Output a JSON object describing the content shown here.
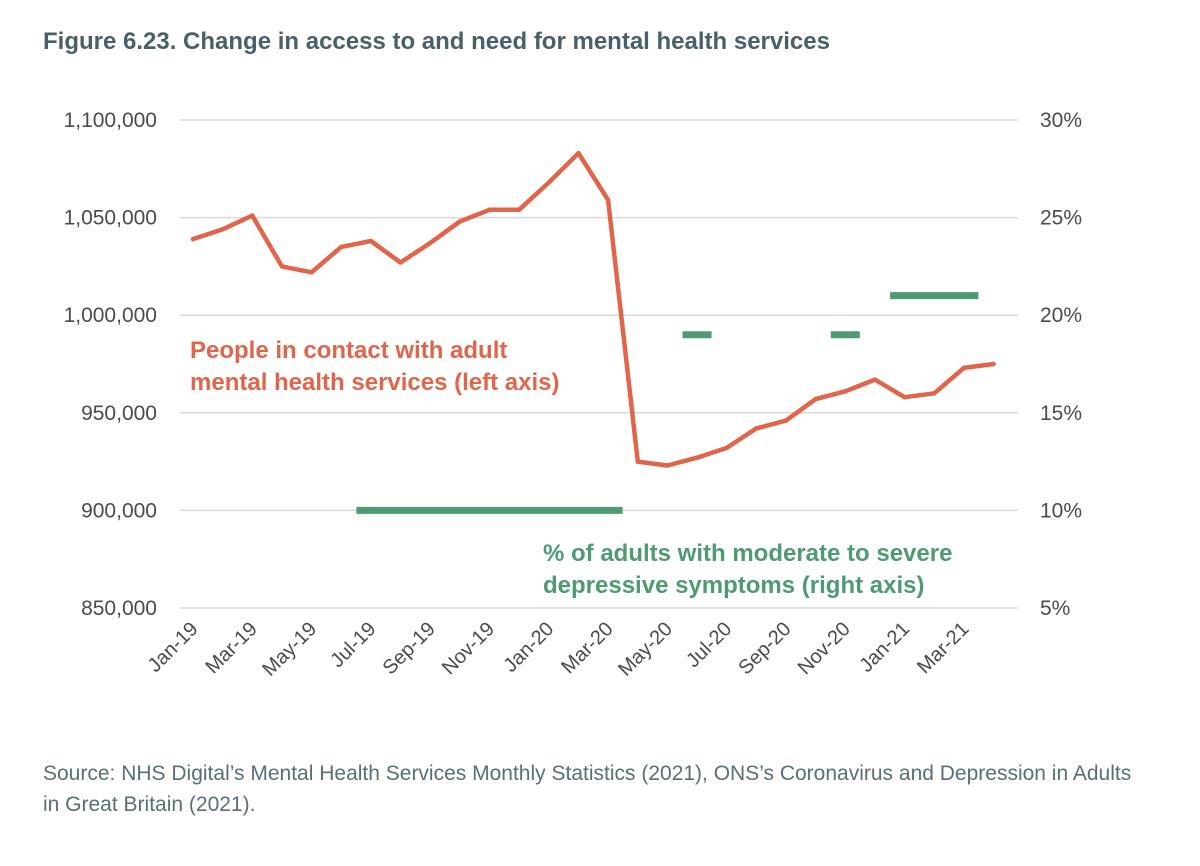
{
  "figure": {
    "title": "Figure 6.23. Change in access to and need for mental health services",
    "source": "Source: NHS Digital’s Mental Health Services Monthly Statistics (2021), ONS’s Coronavirus and Depression in Adults in Great Britain (2021)."
  },
  "colors": {
    "contacts": "#e0654a",
    "depression": "#4e9a73",
    "grid": "#d9d9d9",
    "title": "#4a6069",
    "text": "#4b4b4b"
  },
  "chart_data": {
    "type": "line",
    "title": "Figure 6.23. Change in access to and need for mental health services",
    "categories": [
      "Jan-19",
      "Feb-19",
      "Mar-19",
      "Apr-19",
      "May-19",
      "Jun-19",
      "Jul-19",
      "Aug-19",
      "Sep-19",
      "Oct-19",
      "Nov-19",
      "Dec-19",
      "Jan-20",
      "Feb-20",
      "Mar-20",
      "Apr-20",
      "May-20",
      "Jun-20",
      "Jul-20",
      "Aug-20",
      "Sep-20",
      "Oct-20",
      "Nov-20",
      "Dec-20",
      "Jan-21",
      "Feb-21",
      "Mar-21",
      "Apr-21"
    ],
    "x_tick_labels": [
      "Jan-19",
      "Mar-19",
      "May-19",
      "Jul-19",
      "Sep-19",
      "Nov-19",
      "Jan-20",
      "Mar-20",
      "May-20",
      "Jul-20",
      "Sep-20",
      "Nov-20",
      "Jan-21",
      "Mar-21"
    ],
    "grid": true,
    "left_axis": {
      "ylim": [
        850000,
        1100000
      ],
      "ticks": [
        850000,
        900000,
        950000,
        1000000,
        1050000,
        1100000
      ],
      "tick_labels": [
        "850,000",
        "900,000",
        "950,000",
        "1,000,000",
        "1,050,000",
        "1,100,000"
      ]
    },
    "right_axis": {
      "ylim": [
        5,
        30
      ],
      "ticks": [
        5,
        10,
        15,
        20,
        25,
        30
      ],
      "tick_labels": [
        "5%",
        "10%",
        "15%",
        "20%",
        "25%",
        "30%"
      ]
    },
    "series": [
      {
        "name": "People in contact with adult mental health services (left axis)",
        "axis": "left",
        "values": [
          1039000,
          1044000,
          1051000,
          1025000,
          1022000,
          1035000,
          1038000,
          1027000,
          1037000,
          1048000,
          1054000,
          1054000,
          1068000,
          1083000,
          1059000,
          925000,
          923000,
          927000,
          932000,
          942000,
          946000,
          957000,
          961000,
          967000,
          958000,
          960000,
          973000,
          975000
        ]
      },
      {
        "name": "% of adults with moderate to severe depressive symptoms (right axis)",
        "axis": "right",
        "type": "segments",
        "segments": [
          {
            "from": "Jul-19",
            "to": "Mar-20",
            "value": 10
          },
          {
            "from": "Jun-20",
            "to": "Jun-20",
            "value": 19
          },
          {
            "from": "Nov-20",
            "to": "Nov-20",
            "value": 19
          },
          {
            "from": "Jan-21",
            "to": "Mar-21",
            "value": 21
          }
        ]
      }
    ],
    "annotations": [
      {
        "series": 0,
        "lines": [
          "People in contact with adult",
          "mental health services (left axis)"
        ]
      },
      {
        "series": 1,
        "lines": [
          "% of adults with moderate to severe",
          "depressive symptoms (right axis)"
        ]
      }
    ]
  }
}
